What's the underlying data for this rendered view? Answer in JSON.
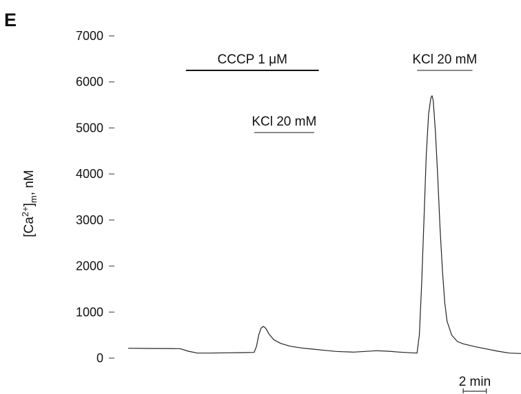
{
  "figure": {
    "panel_label": "E"
  },
  "chart_data": {
    "type": "line",
    "ylabel": "[Ca2+]m, nM",
    "ylabel_parts": {
      "prefix": "[Ca",
      "superscript": "2+",
      "bracket": "]",
      "subscript": "m",
      "suffix": ", nM"
    },
    "ylim": [
      0,
      7000
    ],
    "yticks": [
      0,
      1000,
      2000,
      3000,
      4000,
      5000,
      6000,
      7000
    ],
    "ytick_labels": [
      "0",
      "1000",
      "2000",
      "3000",
      "4000",
      "5000",
      "6000",
      "7000"
    ],
    "grid": false,
    "legend": null,
    "xlim": [
      0,
      34.0
    ],
    "x_unit": "min",
    "scale_bar": {
      "length": 2,
      "label": "2 min"
    },
    "annotations": [
      {
        "label": "CCCP 1 μM",
        "x_start": 5.0,
        "x_end": 16.5,
        "y": 6250,
        "line_weight": "thick"
      },
      {
        "label": "KCl 20 mM",
        "x_start": 10.9,
        "x_end": 16.1,
        "y": 4900,
        "line_weight": "thin"
      },
      {
        "label": "KCl 20 mM",
        "x_start": 25.0,
        "x_end": 29.8,
        "y": 6250,
        "line_weight": "thin"
      }
    ],
    "series": [
      {
        "values": [
          [
            0.0,
            215
          ],
          [
            2.0,
            210
          ],
          [
            3.5,
            208
          ],
          [
            4.5,
            205
          ],
          [
            5.2,
            150
          ],
          [
            6.0,
            110
          ],
          [
            7.0,
            110
          ],
          [
            8.5,
            115
          ],
          [
            10.0,
            120
          ],
          [
            10.9,
            125
          ],
          [
            11.1,
            250
          ],
          [
            11.3,
            500
          ],
          [
            11.5,
            650
          ],
          [
            11.7,
            690
          ],
          [
            11.9,
            650
          ],
          [
            12.2,
            520
          ],
          [
            12.6,
            400
          ],
          [
            13.2,
            320
          ],
          [
            14.0,
            260
          ],
          [
            15.0,
            220
          ],
          [
            16.0,
            195
          ],
          [
            17.0,
            170
          ],
          [
            18.0,
            145
          ],
          [
            18.5,
            140
          ],
          [
            19.5,
            130
          ],
          [
            20.5,
            145
          ],
          [
            21.5,
            160
          ],
          [
            22.5,
            150
          ],
          [
            23.5,
            130
          ],
          [
            24.5,
            115
          ],
          [
            25.0,
            110
          ],
          [
            25.2,
            500
          ],
          [
            25.4,
            1600
          ],
          [
            25.6,
            3000
          ],
          [
            25.8,
            4400
          ],
          [
            26.0,
            5300
          ],
          [
            26.2,
            5650
          ],
          [
            26.3,
            5700
          ],
          [
            26.4,
            5600
          ],
          [
            26.6,
            4900
          ],
          [
            26.8,
            3900
          ],
          [
            27.0,
            2800
          ],
          [
            27.2,
            1900
          ],
          [
            27.4,
            1200
          ],
          [
            27.6,
            800
          ],
          [
            28.0,
            500
          ],
          [
            28.5,
            360
          ],
          [
            29.0,
            310
          ],
          [
            29.5,
            280
          ],
          [
            30.0,
            250
          ],
          [
            31.0,
            200
          ],
          [
            32.0,
            150
          ],
          [
            33.0,
            110
          ],
          [
            34.0,
            100
          ]
        ]
      }
    ]
  }
}
